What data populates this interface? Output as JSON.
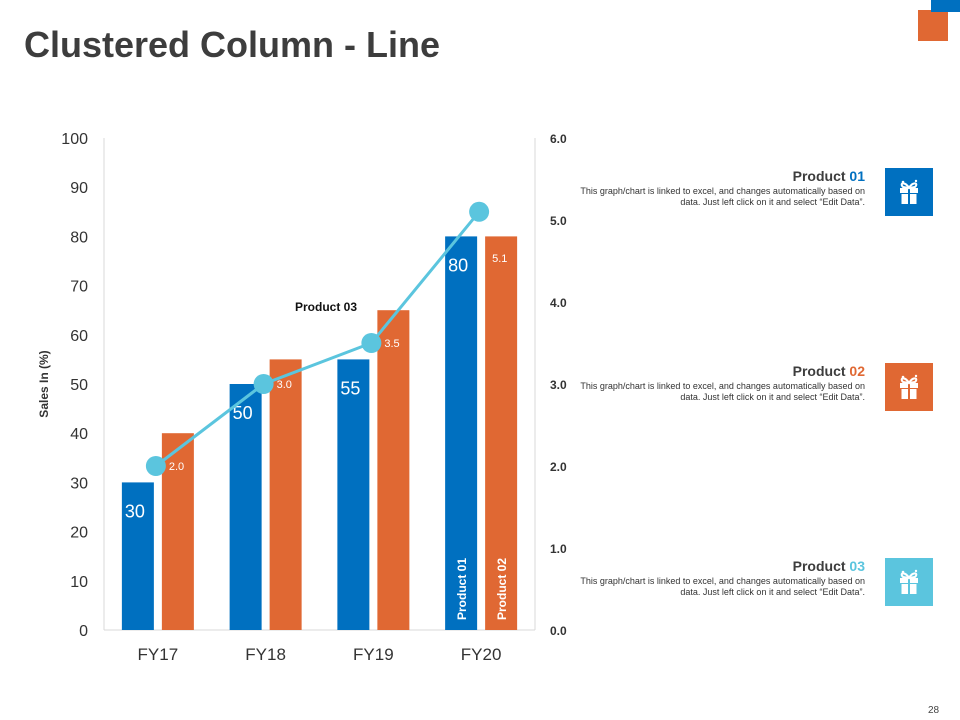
{
  "slide": {
    "title": "Clustered Column - Line",
    "page_number": "28",
    "colors": {
      "product01": "#0070C0",
      "product02": "#E06833",
      "product03": "#5BC5DE",
      "text": "#3d3d3d"
    }
  },
  "chart_data": {
    "type": "bar",
    "title": "",
    "xlabel": "",
    "ylabel": "Sales In (%)",
    "categories": [
      "FY17",
      "FY18",
      "FY19",
      "FY20"
    ],
    "ylim": [
      0,
      100
    ],
    "yticks": [
      "0",
      "10",
      "20",
      "30",
      "40",
      "50",
      "60",
      "70",
      "80",
      "90",
      "100"
    ],
    "y2lim": [
      0,
      6
    ],
    "y2ticks": [
      "0.0",
      "1.0",
      "2.0",
      "3.0",
      "4.0",
      "5.0",
      "6.0"
    ],
    "series": [
      {
        "name": "Product 01",
        "type": "bar",
        "axis": "left",
        "values": [
          30,
          50,
          55,
          80
        ],
        "data_labels": [
          "30",
          "50",
          "55",
          "80"
        ]
      },
      {
        "name": "Product 02",
        "type": "bar",
        "axis": "left",
        "values": [
          40,
          55,
          65,
          80
        ]
      },
      {
        "name": "Product 03",
        "type": "line",
        "axis": "right",
        "values": [
          2.0,
          3.0,
          3.5,
          5.1
        ],
        "data_labels": [
          "2.0",
          "3.0",
          "3.5",
          "5.1"
        ]
      }
    ],
    "annotations": [
      "Product 03"
    ]
  },
  "legend": [
    {
      "label": "Product ",
      "number": "01",
      "color": "#0070C0",
      "description": "This graph/chart is linked to excel, and changes automatically based on data. Just left click on it and select “Edit Data”.",
      "icon": "gift-box-icon"
    },
    {
      "label": "Product ",
      "number": "02",
      "color": "#E06833",
      "description": "This graph/chart is linked to excel, and changes automatically based on data. Just left click on it and select “Edit Data”.",
      "icon": "gift-box-icon"
    },
    {
      "label": "Product ",
      "number": "03",
      "color": "#5BC5DE",
      "description": "This graph/chart is linked to excel, and changes automatically based on data. Just left click on it and select “Edit Data”.",
      "icon": "gift-box-icon"
    }
  ]
}
